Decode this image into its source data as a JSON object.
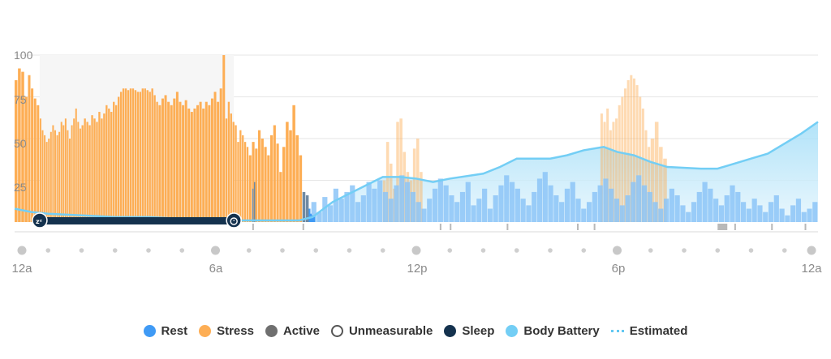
{
  "chart_data": {
    "type": "bar",
    "y_ticks": [
      "100",
      "75",
      "50",
      "25"
    ],
    "x_tick_labels": [
      "12a",
      "6a",
      "12p",
      "6p",
      "12a"
    ],
    "x_range_hours": [
      0,
      24
    ],
    "ylim": [
      0,
      100
    ],
    "grid": true,
    "legend_position": "bottom",
    "legend": [
      {
        "name": "Rest",
        "color": "#3f9af5",
        "style": "dot"
      },
      {
        "name": "Stress",
        "color": "#fdae55",
        "style": "dot"
      },
      {
        "name": "Active",
        "color": "#6f6f6f",
        "style": "dot"
      },
      {
        "name": "Unmeasurable",
        "color": "#ffffff",
        "style": "hollow"
      },
      {
        "name": "Sleep",
        "color": "#14324e",
        "style": "dot"
      },
      {
        "name": "Body Battery",
        "color": "#73cef5",
        "style": "dot"
      },
      {
        "name": "Estimated",
        "color": "#63c8f2",
        "style": "dashed"
      }
    ],
    "sleep_window_hours": [
      0.75,
      6.55
    ],
    "series": [
      {
        "name": "Stress",
        "segments": [
          {
            "hours": [
              0.0,
              0.4
            ],
            "values": [
              85,
              92,
              90,
              75
            ]
          },
          {
            "hours": [
              0.4,
              0.75
            ],
            "values": [
              88,
              80,
              74,
              70
            ]
          },
          {
            "hours": [
              0.75,
              2.0
            ],
            "values": [
              62,
              55,
              52,
              48,
              50,
              54,
              58,
              55,
              52,
              54,
              60,
              58,
              62,
              55,
              50,
              58,
              62,
              68,
              60,
              56
            ]
          },
          {
            "hours": [
              2.0,
              4.3
            ],
            "values": [
              58,
              62,
              60,
              58,
              64,
              62,
              60,
              66,
              62,
              65,
              70,
              68,
              66,
              72,
              70,
              75,
              78,
              80,
              80,
              79,
              80,
              80,
              79,
              78,
              78,
              80,
              80,
              79,
              78,
              80,
              76,
              72
            ]
          },
          {
            "hours": [
              4.3,
              6.3
            ],
            "values": [
              70,
              74,
              76,
              72,
              70,
              74,
              78,
              72,
              70,
              73,
              68,
              66,
              68,
              70,
              72,
              68,
              72,
              70,
              74,
              78,
              72,
              80,
              100
            ]
          },
          {
            "hours": [
              6.3,
              7.0
            ],
            "values": [
              62,
              72,
              65,
              60,
              58,
              48,
              55,
              52,
              48,
              45
            ]
          },
          {
            "hours": [
              7.0,
              8.0
            ],
            "values": [
              40,
              48,
              44,
              55,
              50,
              45,
              40,
              52,
              58,
              47,
              30
            ]
          },
          {
            "hours": [
              8.0,
              8.6
            ],
            "values": [
              45,
              60,
              55,
              70,
              52,
              40
            ]
          },
          {
            "hours": [
              11.0,
              12.2
            ],
            "values": [
              25,
              48,
              35,
              20,
              60,
              62,
              42,
              30,
              25,
              44,
              50,
              30
            ]
          },
          {
            "hours": [
              17.5,
              19.0
            ],
            "values": [
              65,
              60,
              68,
              55,
              60,
              62,
              70,
              75,
              80,
              85,
              88,
              86,
              82,
              75,
              68,
              55,
              45
            ]
          },
          {
            "hours": [
              19.0,
              19.5
            ],
            "values": [
              50,
              60,
              45,
              38
            ]
          }
        ]
      },
      {
        "name": "Rest",
        "values_note": "light blue awake-rest bars from ~8.7h to 24h",
        "segments": [
          {
            "hours": [
              8.7,
              24.0
            ],
            "values": [
              8,
              12,
              6,
              15,
              10,
              20,
              14,
              18,
              22,
              12,
              16,
              24,
              20,
              25,
              18,
              14,
              22,
              28,
              24,
              18,
              12,
              8,
              14,
              20,
              26,
              22,
              16,
              12,
              18,
              24,
              10,
              14,
              20,
              8,
              16,
              22,
              28,
              24,
              20,
              14,
              10,
              18,
              26,
              30,
              22,
              16,
              12,
              20,
              24,
              14,
              8,
              12,
              18,
              22,
              26,
              20,
              14,
              10,
              16,
              24,
              28,
              22,
              18,
              12,
              8,
              14,
              20,
              16,
              10,
              6,
              12,
              18,
              24,
              20,
              14,
              10,
              16,
              22,
              18,
              12,
              8,
              14,
              10,
              6,
              12,
              16,
              8,
              4,
              10,
              14,
              6,
              8,
              12
            ]
          }
        ]
      },
      {
        "name": "Body Battery",
        "points": [
          [
            0,
            8
          ],
          [
            0.5,
            6
          ],
          [
            1,
            5
          ],
          [
            2,
            4
          ],
          [
            3,
            3
          ],
          [
            4,
            3
          ],
          [
            5,
            2
          ],
          [
            6,
            2
          ],
          [
            6.8,
            1
          ],
          [
            7.5,
            1
          ],
          [
            8.5,
            1
          ],
          [
            8.9,
            3
          ],
          [
            9.5,
            12
          ],
          [
            10.5,
            22
          ],
          [
            11.0,
            27
          ],
          [
            11.5,
            27
          ],
          [
            12.0,
            26
          ],
          [
            12.5,
            24
          ],
          [
            13.0,
            26
          ],
          [
            14.0,
            29
          ],
          [
            14.5,
            33
          ],
          [
            15.0,
            38
          ],
          [
            16.0,
            38
          ],
          [
            16.5,
            40
          ],
          [
            17.0,
            43
          ],
          [
            17.6,
            45
          ],
          [
            18.0,
            42
          ],
          [
            18.5,
            40
          ],
          [
            19.0,
            36
          ],
          [
            19.5,
            33
          ],
          [
            20.5,
            32
          ],
          [
            21.0,
            32
          ],
          [
            21.5,
            35
          ],
          [
            22.0,
            38
          ],
          [
            22.5,
            41
          ],
          [
            23.0,
            47
          ],
          [
            23.5,
            53
          ],
          [
            24.0,
            60
          ]
        ]
      },
      {
        "name": "Active",
        "segments": [
          {
            "hours": [
              7.1,
              7.2
            ],
            "values": [
              20,
              24
            ]
          },
          {
            "hours": [
              8.6,
              8.8
            ],
            "values": [
              18,
              16
            ]
          }
        ]
      },
      {
        "name": "Unmeasurable",
        "segments": [
          {
            "hours": [
              21.0,
              21.2
            ],
            "values": [
              10
            ]
          }
        ]
      }
    ]
  }
}
